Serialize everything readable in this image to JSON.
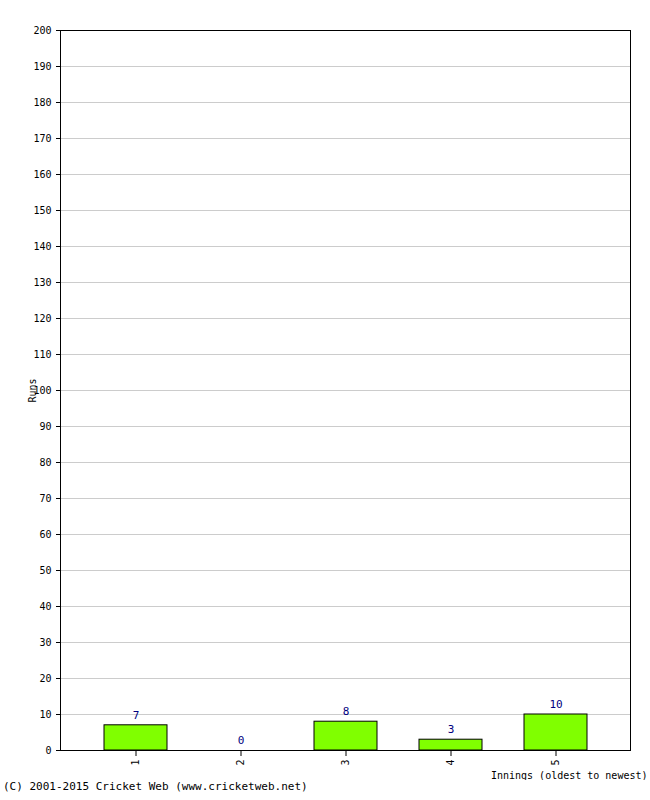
{
  "chart_data": {
    "type": "bar",
    "categories": [
      "1",
      "2",
      "3",
      "4",
      "5"
    ],
    "values": [
      7,
      0,
      8,
      3,
      10
    ],
    "color": "#80ff00",
    "x_label": "Innings (oldest to newest)",
    "y_label": "Runs",
    "caption": "(C) 2001-2015 Cricket Web (www.cricketweb.net)",
    "ylim": [
      0,
      200
    ],
    "yticks": [
      0,
      10,
      20,
      30,
      40,
      50,
      60,
      70,
      80,
      90,
      100,
      110,
      120,
      130,
      140,
      150,
      160,
      170,
      180,
      190,
      200
    ],
    "grid": true,
    "data_labels": true
  }
}
